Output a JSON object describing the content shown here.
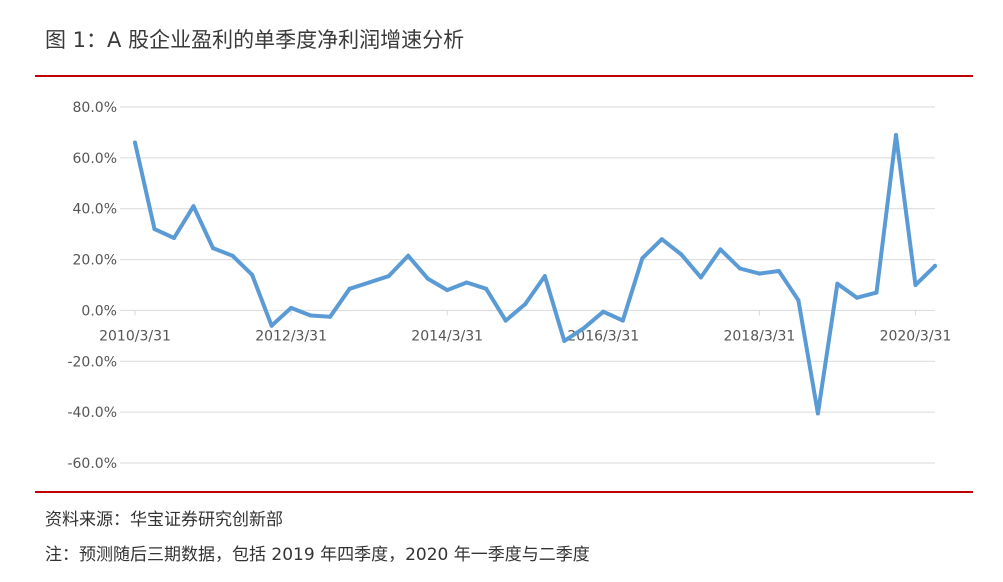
{
  "title": "图 1：A 股企业盈利的单季度净利润增速分析",
  "source": "资料来源：华宝证券研究创新部",
  "remark": "注：预测随后三期数据，包括 2019 年四季度，2020 年一季度与二季度",
  "colors": {
    "line": "#5b9bd5",
    "rule": "#c00000",
    "grid": "#d9d9d9"
  },
  "chart_data": {
    "type": "line",
    "x": [
      "2010/3/31",
      "2010/6/30",
      "2010/9/30",
      "2010/12/31",
      "2011/3/31",
      "2011/6/30",
      "2011/9/30",
      "2011/12/31",
      "2012/3/31",
      "2012/6/30",
      "2012/9/30",
      "2012/12/31",
      "2013/3/31",
      "2013/6/30",
      "2013/9/30",
      "2013/12/31",
      "2014/3/31",
      "2014/6/30",
      "2014/9/30",
      "2014/12/31",
      "2015/3/31",
      "2015/6/30",
      "2015/9/30",
      "2015/12/31",
      "2016/3/31",
      "2016/6/30",
      "2016/9/30",
      "2016/12/31",
      "2017/3/31",
      "2017/6/30",
      "2017/9/30",
      "2017/12/31",
      "2018/3/31",
      "2018/6/30",
      "2018/9/30",
      "2018/12/31",
      "2019/3/31",
      "2019/6/30",
      "2019/9/30",
      "2019/12/31",
      "2020/3/31",
      "2020/6/30"
    ],
    "values": [
      66,
      32,
      28.5,
      41,
      24.5,
      21.5,
      14,
      -6,
      1,
      -2,
      -2.5,
      8.5,
      11,
      13.5,
      21.5,
      12.5,
      8,
      11,
      8.5,
      -4,
      2.5,
      13.5,
      -12,
      -7,
      -0.5,
      -4,
      20.5,
      28,
      22,
      13,
      24,
      16.5,
      14.5,
      15.5,
      4,
      -40.5,
      10.5,
      5,
      7,
      69,
      10,
      17.5
    ],
    "tick_labels": [
      "2010/3/31",
      "2012/3/31",
      "2014/3/31",
      "2016/3/31",
      "2018/3/31",
      "2020/3/31"
    ],
    "y_ticks": [
      "80.0%",
      "60.0%",
      "40.0%",
      "20.0%",
      "0.0%",
      "-20.0%",
      "-40.0%",
      "-60.0%"
    ],
    "ylim": [
      -60,
      80
    ],
    "grid": true,
    "legend": "none"
  }
}
